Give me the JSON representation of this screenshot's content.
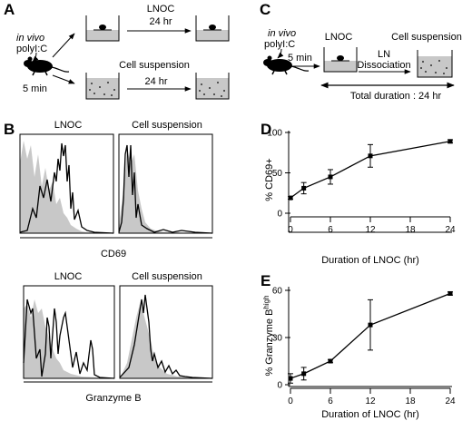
{
  "panel_a": {
    "letter": "A",
    "invivo": "in vivo",
    "polyic": "polyI:C",
    "time": "5 min",
    "lnoc": "LNOC",
    "lnoc_duration": "24 hr",
    "cellsusp": "Cell suspension",
    "cellsusp_duration": "24 hr"
  },
  "panel_b": {
    "letter": "B",
    "top_left_title": "LNOC",
    "top_right_title": "Cell suspension",
    "top_xlabel": "CD69",
    "bottom_left_title": "LNOC",
    "bottom_right_title": "Cell suspension",
    "bottom_xlabel": "Granzyme B"
  },
  "panel_c": {
    "letter": "C",
    "invivo": "in vivo",
    "polyic": "polyI:C",
    "time": "5 min",
    "lnoc": "LNOC",
    "ln": "LN",
    "dissociation": "Dissociation",
    "cellsusp": "Cell suspension",
    "total": "Total duration : 24 hr"
  },
  "chart_data": [
    {
      "panel": "D",
      "type": "line",
      "xlabel": "Duration of LNOC (hr)",
      "ylabel": "% CD69+",
      "x": [
        0,
        2,
        6,
        12,
        24
      ],
      "values": [
        19,
        31,
        45,
        71,
        89
      ],
      "errors": [
        1.5,
        7,
        9,
        14,
        2
      ],
      "xlim": [
        0,
        24
      ],
      "ylim": [
        0,
        100
      ],
      "xticks": [
        "0",
        "6",
        "12",
        "18",
        "24"
      ],
      "yticks": [
        "0",
        "50",
        "100"
      ],
      "color": "#000000"
    },
    {
      "panel": "E",
      "type": "line",
      "xlabel": "Duration of LNOC (hr)",
      "ylabel_main": "% Granzyme B",
      "ylabel_sup": "high",
      "x": [
        0,
        2,
        6,
        12,
        24
      ],
      "values": [
        4,
        7,
        15,
        38,
        58
      ],
      "errors": [
        3,
        4,
        1,
        16,
        1
      ],
      "xlim": [
        0,
        24
      ],
      "ylim": [
        0,
        60
      ],
      "xticks": [
        "0",
        "6",
        "12",
        "18",
        "24"
      ],
      "yticks": [
        "0",
        "30",
        "60"
      ],
      "color": "#000000"
    }
  ],
  "colors": {
    "histogram_fill": "#c8c8c8",
    "histogram_line": "#000000",
    "medium": "#c8c8c8"
  }
}
